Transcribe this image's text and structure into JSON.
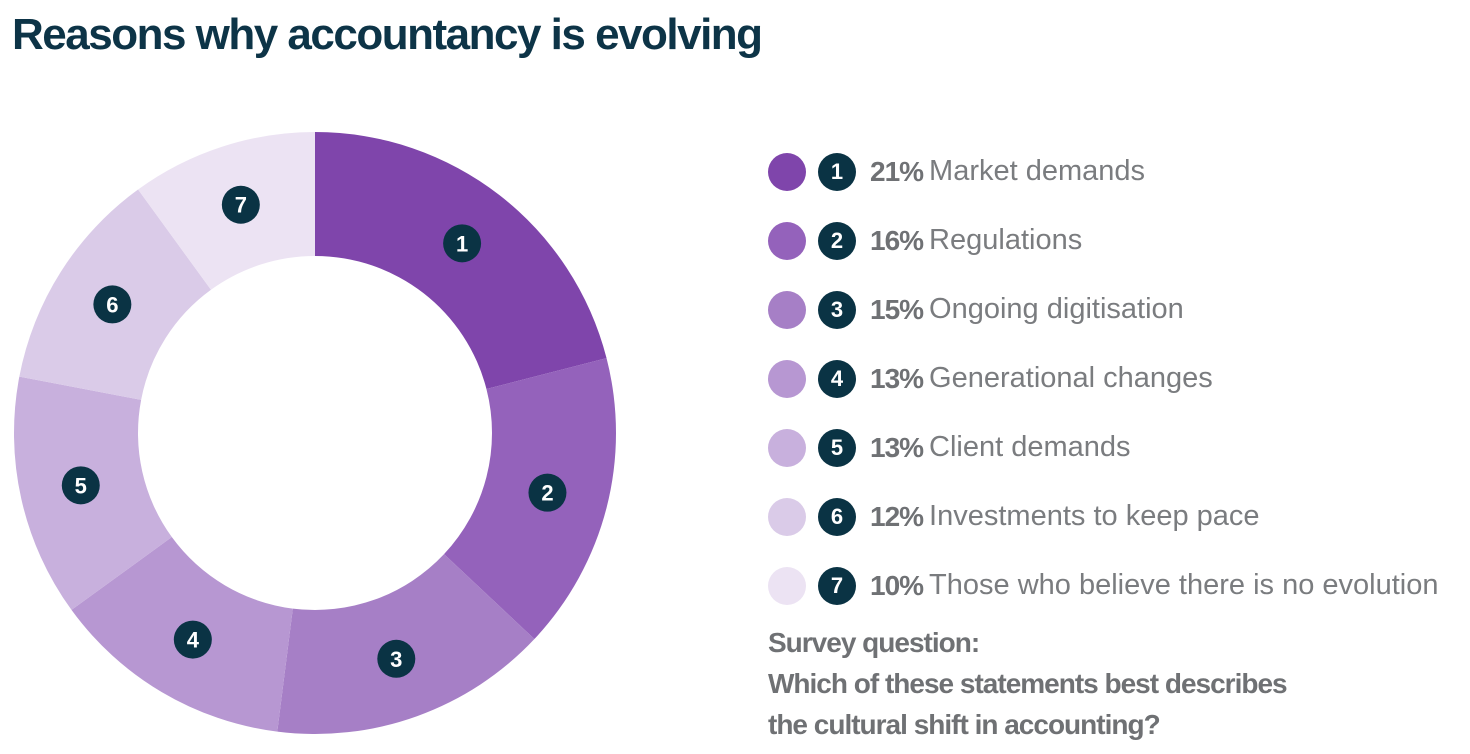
{
  "title": "Reasons why accountancy is evolving",
  "chart_data": {
    "type": "pie",
    "donut": true,
    "title": "Reasons why accountancy is evolving",
    "slices": [
      {
        "id": "1",
        "value": 21,
        "label": "Market demands",
        "color": "#7f45ab"
      },
      {
        "id": "2",
        "value": 16,
        "label": "Regulations",
        "color": "#9462bb"
      },
      {
        "id": "3",
        "value": 15,
        "label": "Ongoing digitisation",
        "color": "#a67fc6"
      },
      {
        "id": "4",
        "value": 13,
        "label": "Generational changes",
        "color": "#b797d2"
      },
      {
        "id": "5",
        "value": 13,
        "label": "Client demands",
        "color": "#c8b0dd"
      },
      {
        "id": "6",
        "value": 12,
        "label": "Investments to keep pace",
        "color": "#dacbe8"
      },
      {
        "id": "7",
        "value": 10,
        "label": "Those who believe there is no evolution",
        "color": "#ece3f3"
      }
    ],
    "legend_placement": "right"
  },
  "legend": [
    {
      "num": "1",
      "pct": "21%"
    },
    {
      "num": "2",
      "pct": "16%"
    },
    {
      "num": "3",
      "pct": "15%"
    },
    {
      "num": "4",
      "pct": "13%"
    },
    {
      "num": "5",
      "pct": "13%"
    },
    {
      "num": "6",
      "pct": "12%"
    },
    {
      "num": "7",
      "pct": "10%"
    }
  ],
  "survey": {
    "line1": "Survey question:",
    "line2": "Which of these statements best describes",
    "line3": "the cultural shift in accounting?"
  },
  "colors": {
    "title": "#0d3447",
    "badge": "#0a3344",
    "text": "#6f7174"
  }
}
